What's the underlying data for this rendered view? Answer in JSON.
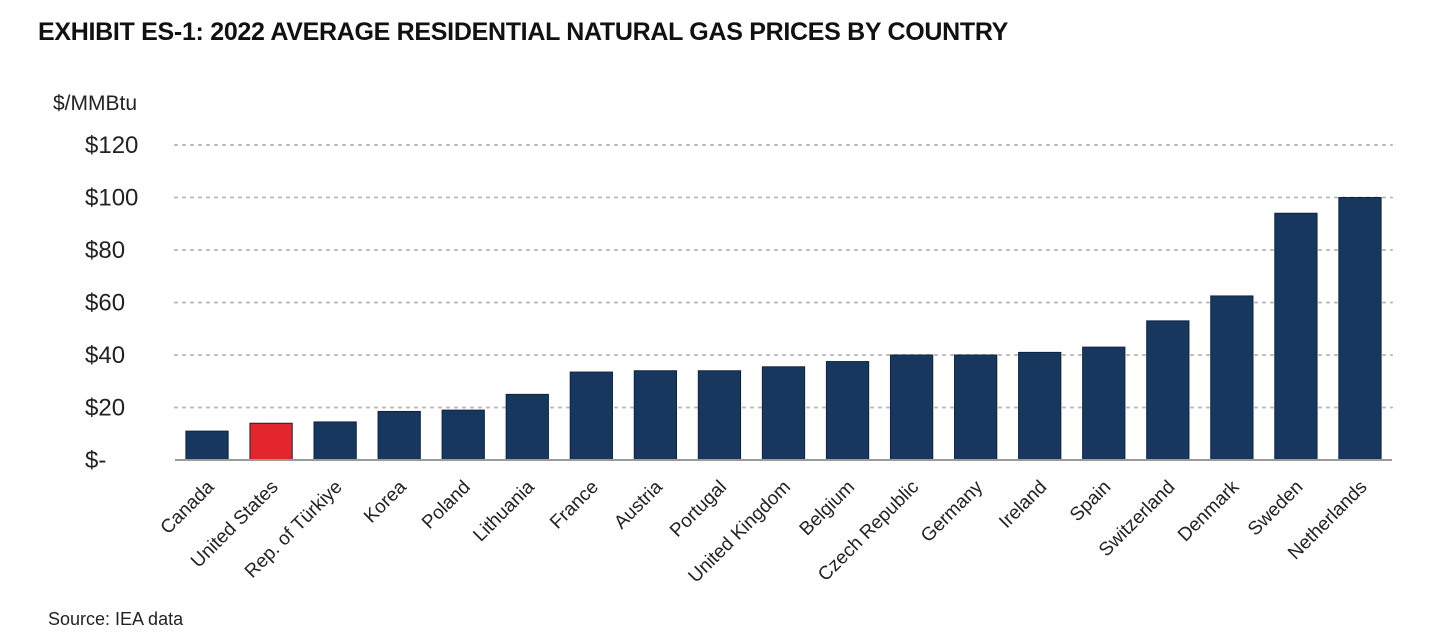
{
  "chart_data": {
    "type": "bar",
    "title": "EXHIBIT ES-1: 2022 AVERAGE RESIDENTIAL NATURAL GAS PRICES BY COUNTRY",
    "ylabel": "$/MMBtu",
    "xlabel": "",
    "ylim": [
      0,
      120
    ],
    "yticks": [
      0,
      20,
      40,
      60,
      80,
      100,
      120
    ],
    "ytick_labels": [
      "$-",
      "$20",
      "$40",
      "$60",
      "$80",
      "$100",
      "$120"
    ],
    "grid": true,
    "legend": "none",
    "categories": [
      "Canada",
      "United States",
      "Rep. of Türkiye",
      "Korea",
      "Poland",
      "Lithuania",
      "France",
      "Austria",
      "Portugal",
      "United Kingdom",
      "Belgium",
      "Czech Republic",
      "Germany",
      "Ireland",
      "Spain",
      "Switzerland",
      "Denmark",
      "Sweden",
      "Netherlands"
    ],
    "values": [
      11,
      14,
      14.5,
      18.5,
      19,
      25,
      33.5,
      34,
      34,
      35.5,
      37.5,
      40,
      40,
      41,
      43,
      53,
      62.5,
      94,
      100
    ],
    "colors": {
      "bar": "#17375e",
      "highlight": "#e3262b",
      "highlight_index": 1
    },
    "source": "Source: IEA data"
  }
}
